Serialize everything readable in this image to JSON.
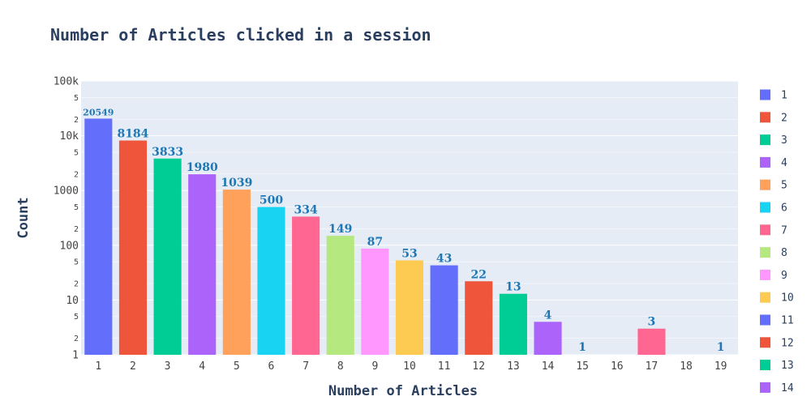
{
  "chart_data": {
    "type": "bar",
    "title": "Number of Articles clicked in a session",
    "xlabel": "Number of Articles",
    "ylabel": "Count",
    "yscale": "log",
    "ylim": [
      1,
      100000
    ],
    "y_major_ticks": [
      {
        "value": 1,
        "label": "1"
      },
      {
        "value": 10,
        "label": "10"
      },
      {
        "value": 100,
        "label": "100"
      },
      {
        "value": 1000,
        "label": "1000"
      },
      {
        "value": 10000,
        "label": "10k"
      },
      {
        "value": 100000,
        "label": "100k"
      }
    ],
    "y_minor_labels": [
      "2",
      "5"
    ],
    "categories": [
      "1",
      "2",
      "3",
      "4",
      "5",
      "6",
      "7",
      "8",
      "9",
      "10",
      "11",
      "12",
      "13",
      "14",
      "15",
      "16",
      "17",
      "18",
      "19"
    ],
    "values": [
      20549,
      8184,
      3833,
      1980,
      1039,
      500,
      334,
      149,
      87,
      53,
      43,
      22,
      13,
      4,
      1,
      null,
      3,
      null,
      1
    ],
    "data_labels": [
      "20549",
      "8184",
      "3833",
      "1980",
      "1039",
      "500",
      "334",
      "149",
      "87",
      "53",
      "43",
      "22",
      "13",
      "4",
      "1",
      "",
      "3",
      "",
      "1"
    ],
    "colors": [
      "#636efa",
      "#EF553B",
      "#00cc96",
      "#ab63fa",
      "#FFA15A",
      "#19d3f3",
      "#FF6692",
      "#B6E880",
      "#FF97FF",
      "#FECB52",
      "#636efa",
      "#EF553B",
      "#00cc96",
      "#ab63fa",
      "#FFA15A",
      "#19d3f3",
      "#FF6692",
      "#B6E880",
      "#FF97FF"
    ],
    "legend": {
      "placement": "right",
      "entries": [
        "1",
        "2",
        "3",
        "4",
        "5",
        "6",
        "7",
        "8",
        "9",
        "10",
        "11",
        "12",
        "13",
        "14"
      ]
    },
    "grid": true,
    "plot_background": "#E5ECF6",
    "label_color": "#1f77b4"
  }
}
